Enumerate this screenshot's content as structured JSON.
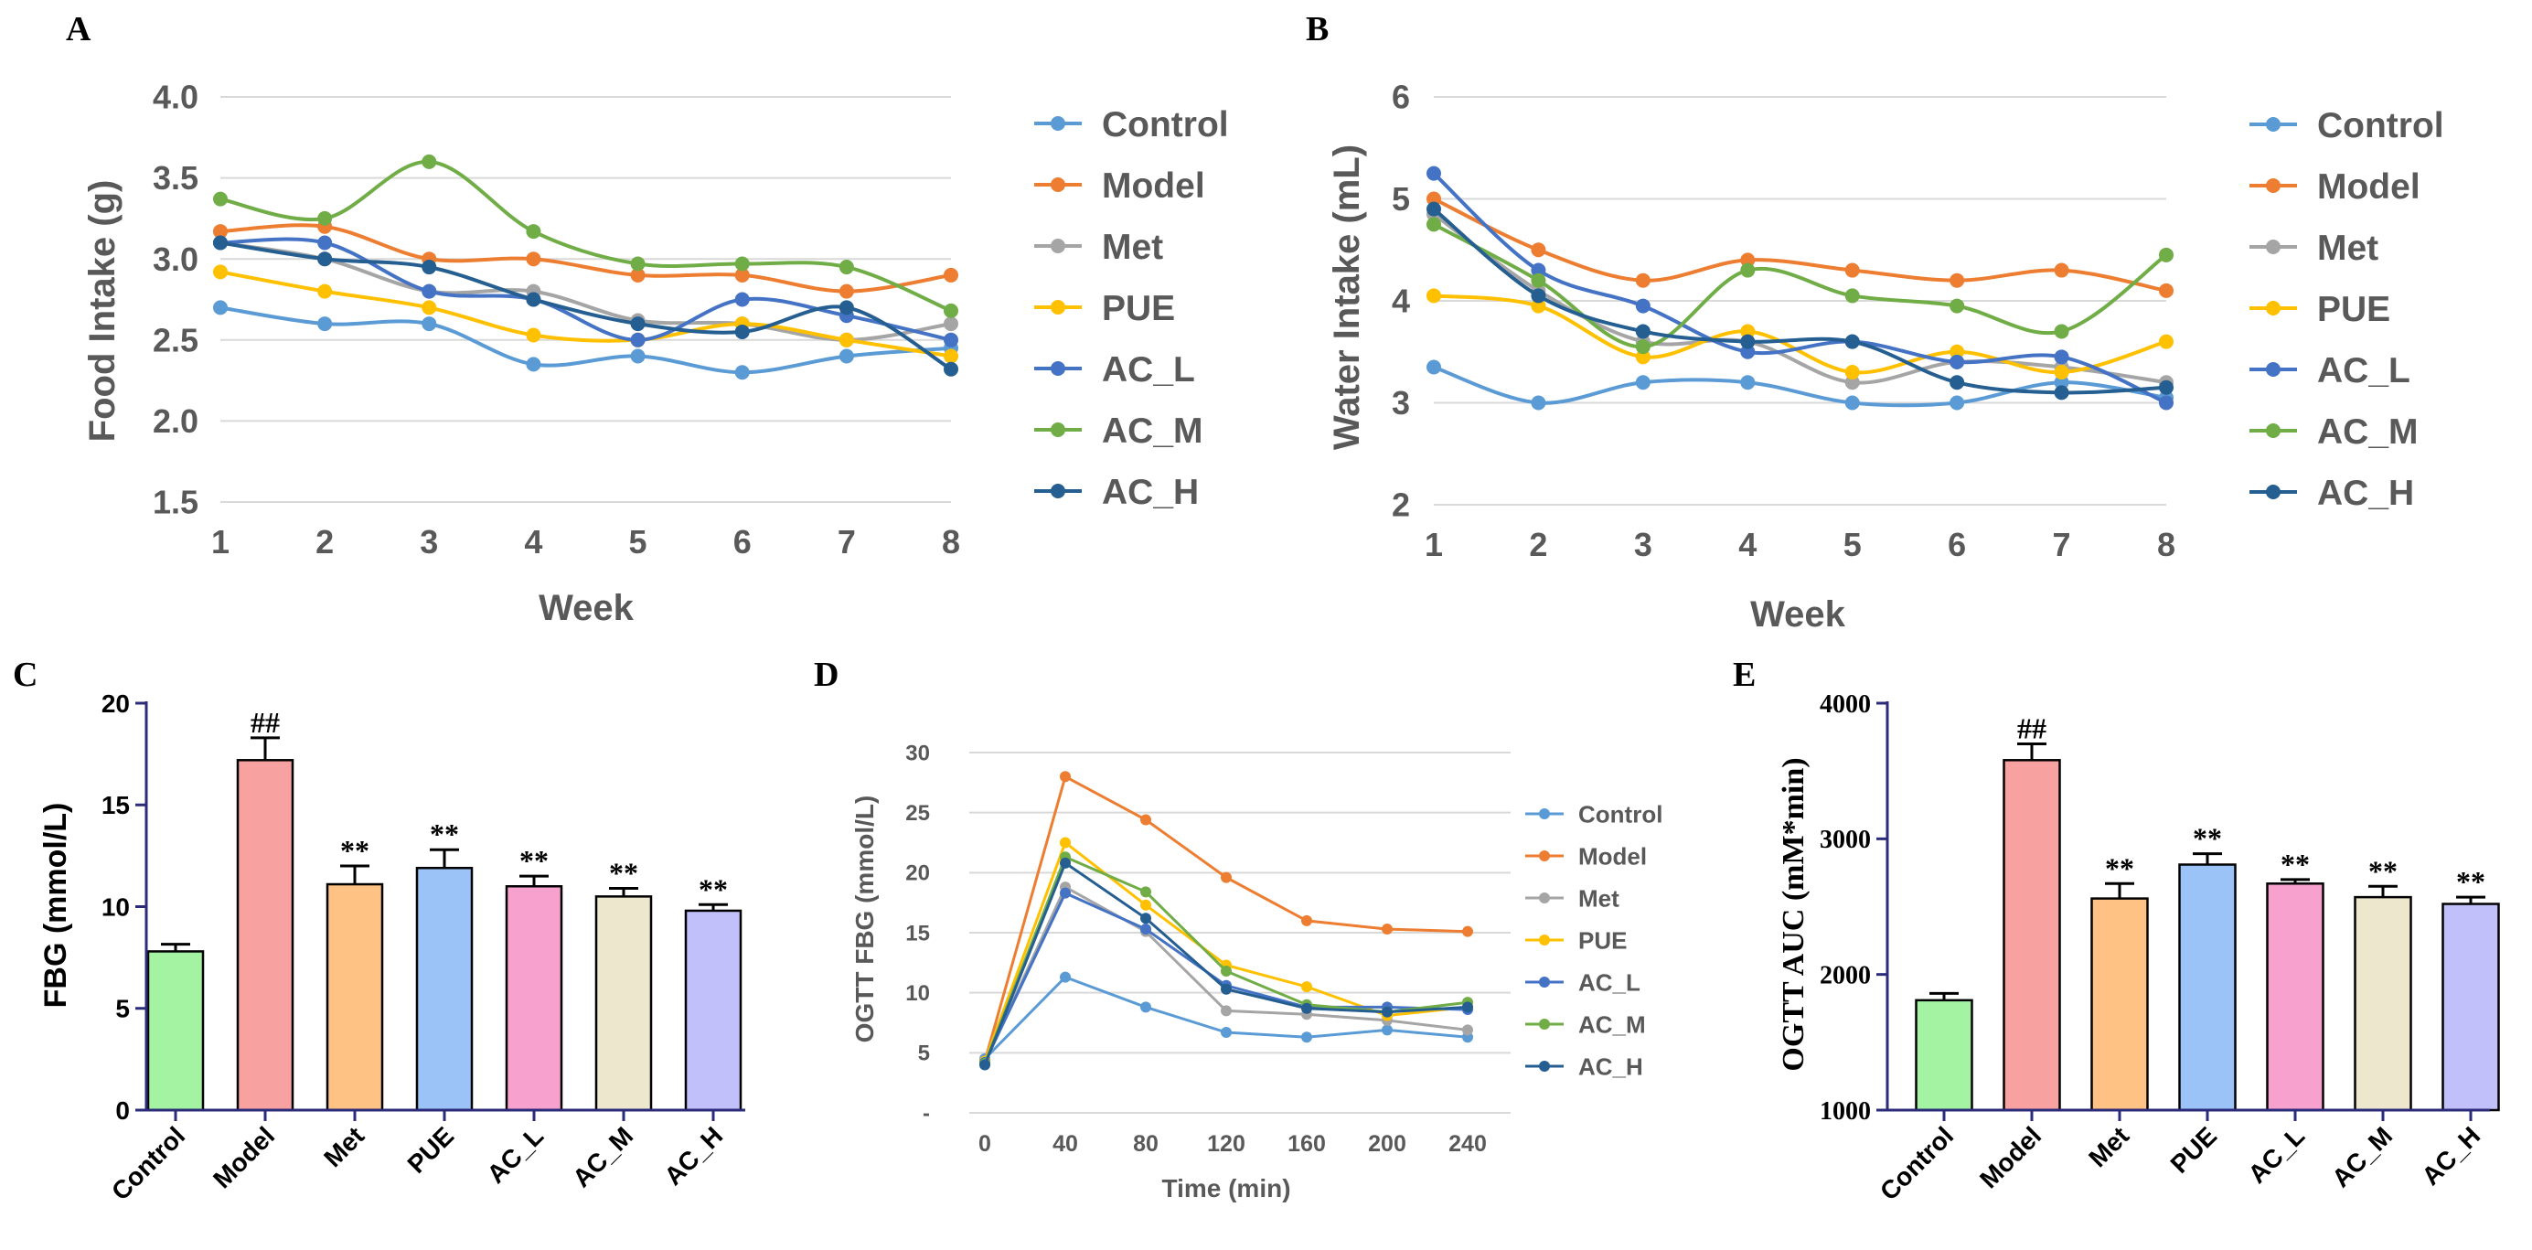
{
  "colors": {
    "Control": "#5b9bd5",
    "Model": "#ed7d31",
    "Met": "#a5a5a5",
    "PUE": "#ffc000",
    "AC_L": "#4472c4",
    "AC_M": "#70ad47",
    "AC_H": "#255e91",
    "bar_Control": "#a3f3a3",
    "bar_Model": "#f8a1a1",
    "bar_Met": "#ffc285",
    "bar_PUE": "#9cc3f8",
    "bar_AC_L": "#f7a1cf",
    "bar_AC_M": "#ece7cd",
    "bar_AC_H": "#c2c0fb",
    "axis_dark": "#2b2b7a"
  },
  "chart_data": [
    {
      "id": "A",
      "panel_label": "A",
      "type": "line",
      "xlabel": "Week",
      "ylabel": "Food Intake (g)",
      "x": [
        1,
        2,
        3,
        4,
        5,
        6,
        7,
        8
      ],
      "xticks": [
        "1",
        "2",
        "3",
        "4",
        "5",
        "6",
        "7",
        "8"
      ],
      "ylim": [
        1.5,
        4.0
      ],
      "yticks": [
        "4.0",
        "3.5",
        "3.0",
        "2.5",
        "2.0",
        "1.5"
      ],
      "legend": "right",
      "series": [
        {
          "name": "Control",
          "values": [
            2.7,
            2.6,
            2.6,
            2.35,
            2.4,
            2.3,
            2.4,
            2.45
          ]
        },
        {
          "name": "Model",
          "values": [
            3.17,
            3.2,
            3.0,
            3.0,
            2.9,
            2.9,
            2.8,
            2.9
          ]
        },
        {
          "name": "Met",
          "values": [
            3.1,
            3.0,
            2.8,
            2.8,
            2.62,
            2.6,
            2.5,
            2.6
          ]
        },
        {
          "name": "PUE",
          "values": [
            2.92,
            2.8,
            2.7,
            2.53,
            2.5,
            2.6,
            2.5,
            2.4
          ]
        },
        {
          "name": "AC_L",
          "values": [
            3.1,
            3.1,
            2.8,
            2.75,
            2.5,
            2.75,
            2.65,
            2.5
          ]
        },
        {
          "name": "AC_M",
          "values": [
            3.37,
            3.25,
            3.6,
            3.17,
            2.97,
            2.97,
            2.95,
            2.68
          ]
        },
        {
          "name": "AC_H",
          "values": [
            3.1,
            3.0,
            2.95,
            2.75,
            2.6,
            2.55,
            2.7,
            2.32
          ]
        }
      ]
    },
    {
      "id": "B",
      "panel_label": "B",
      "type": "line",
      "xlabel": "Week",
      "ylabel": "Water Intake (mL)",
      "x": [
        1,
        2,
        3,
        4,
        5,
        6,
        7,
        8
      ],
      "xticks": [
        "1",
        "2",
        "3",
        "4",
        "5",
        "6",
        "7",
        "8"
      ],
      "ylim": [
        2,
        6
      ],
      "yticks": [
        "6",
        "5",
        "4",
        "3",
        "2"
      ],
      "legend": "right",
      "series": [
        {
          "name": "Control",
          "values": [
            3.35,
            3.0,
            3.2,
            3.2,
            3.0,
            3.0,
            3.2,
            3.05
          ]
        },
        {
          "name": "Model",
          "values": [
            5.0,
            4.5,
            4.2,
            4.4,
            4.3,
            4.2,
            4.3,
            4.1
          ]
        },
        {
          "name": "Met",
          "values": [
            4.85,
            4.1,
            3.6,
            3.6,
            3.2,
            3.4,
            3.35,
            3.2
          ]
        },
        {
          "name": "PUE",
          "values": [
            4.05,
            3.95,
            3.45,
            3.7,
            3.3,
            3.5,
            3.3,
            3.6
          ]
        },
        {
          "name": "AC_L",
          "values": [
            5.25,
            4.3,
            3.95,
            3.5,
            3.6,
            3.4,
            3.45,
            3.0
          ]
        },
        {
          "name": "AC_M",
          "values": [
            4.75,
            4.2,
            3.55,
            4.3,
            4.05,
            3.95,
            3.7,
            4.45
          ]
        },
        {
          "name": "AC_H",
          "values": [
            4.9,
            4.05,
            3.7,
            3.6,
            3.6,
            3.2,
            3.1,
            3.15
          ]
        }
      ]
    },
    {
      "id": "C",
      "panel_label": "C",
      "type": "bar",
      "ylabel": "FBG (mmol/L)",
      "categories": [
        "Control",
        "Model",
        "Met",
        "PUE",
        "AC_L",
        "AC_M",
        "AC_H"
      ],
      "values": [
        7.8,
        17.2,
        11.1,
        11.9,
        11.0,
        10.5,
        9.8
      ],
      "errors": [
        0.35,
        1.1,
        0.9,
        0.9,
        0.5,
        0.4,
        0.3
      ],
      "annotations": [
        "",
        "##",
        "**",
        "**",
        "**",
        "**",
        "**"
      ],
      "ylim": [
        0,
        20
      ],
      "yticks": [
        "20",
        "15",
        "10",
        "5",
        "0"
      ]
    },
    {
      "id": "D",
      "panel_label": "D",
      "type": "line",
      "xlabel": "Time (min)",
      "ylabel": "OGTT  FBG (mmol/L)",
      "x": [
        0,
        40,
        80,
        120,
        160,
        200,
        240
      ],
      "xticks": [
        "0",
        "40",
        "80",
        "120",
        "160",
        "200",
        "240"
      ],
      "ylim": [
        0,
        30
      ],
      "yticks": [
        "30",
        "25",
        "20",
        "15",
        "10",
        "5",
        "-"
      ],
      "legend": "right",
      "series": [
        {
          "name": "Control",
          "values": [
            4.5,
            11.3,
            8.8,
            6.7,
            6.3,
            6.9,
            6.3
          ]
        },
        {
          "name": "Model",
          "values": [
            4.3,
            28.0,
            24.4,
            19.6,
            16.0,
            15.3,
            15.1
          ]
        },
        {
          "name": "Met",
          "values": [
            4.2,
            18.8,
            15.1,
            8.5,
            8.2,
            7.7,
            6.9
          ]
        },
        {
          "name": "PUE",
          "values": [
            4.3,
            22.5,
            17.3,
            12.3,
            10.5,
            8.1,
            8.8
          ]
        },
        {
          "name": "AC_L",
          "values": [
            4.2,
            18.3,
            15.3,
            10.6,
            8.8,
            8.8,
            8.6
          ]
        },
        {
          "name": "AC_M",
          "values": [
            4.1,
            21.3,
            18.4,
            11.8,
            9.0,
            8.4,
            9.2
          ]
        },
        {
          "name": "AC_H",
          "values": [
            4.0,
            20.8,
            16.2,
            10.3,
            8.7,
            8.4,
            8.8
          ]
        }
      ]
    },
    {
      "id": "E",
      "panel_label": "E",
      "type": "bar",
      "ylabel": "OGTT AUC (mM*min)",
      "categories": [
        "Control",
        "Model",
        "Met",
        "PUE",
        "AC_L",
        "AC_M",
        "AC_H"
      ],
      "values": [
        1810,
        3580,
        2560,
        2810,
        2670,
        2570,
        2520
      ],
      "errors": [
        50,
        120,
        110,
        80,
        30,
        80,
        50
      ],
      "annotations": [
        "",
        "##",
        "**",
        "**",
        "**",
        "**",
        "**"
      ],
      "ylim": [
        1000,
        4000
      ],
      "yticks": [
        "4000",
        "3000",
        "2000",
        "1000"
      ]
    }
  ]
}
